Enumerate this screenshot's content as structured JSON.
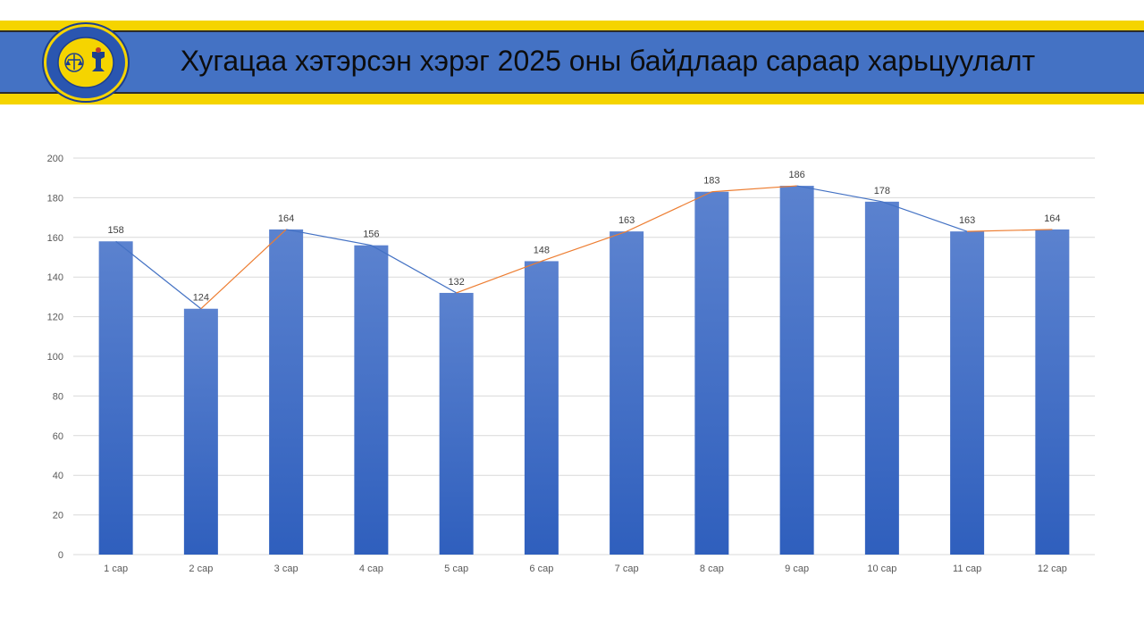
{
  "page": {
    "title": "Хугацаа хэтэрсэн хэрэг 2025 оны байдлаар сараар харьцуулалт"
  },
  "colors": {
    "banner_yellow": "#f5d400",
    "banner_blue": "#4472c4",
    "bar_top": "#5b82cf",
    "bar_bottom": "#2f5fbd",
    "line_down": "#4472c4",
    "line_up": "#ed7d31",
    "grid": "#d9d9d9"
  },
  "chart_data": {
    "type": "bar",
    "categories": [
      "1 сар",
      "2 сар",
      "3 сар",
      "4 сар",
      "5 сар",
      "6 сар",
      "7 сар",
      "8 сар",
      "9 сар",
      "10 сар",
      "11 сар",
      "12 сар"
    ],
    "values": [
      158,
      124,
      164,
      156,
      132,
      148,
      163,
      183,
      186,
      178,
      163,
      164
    ],
    "ylim": [
      0,
      200
    ],
    "yticks": [
      0,
      20,
      40,
      60,
      80,
      100,
      120,
      140,
      160,
      180,
      200
    ],
    "grid": true,
    "legend": "none",
    "data_labels": true,
    "trend_line": "connects bar tops; blue segments where the value falls, orange where it rises"
  }
}
